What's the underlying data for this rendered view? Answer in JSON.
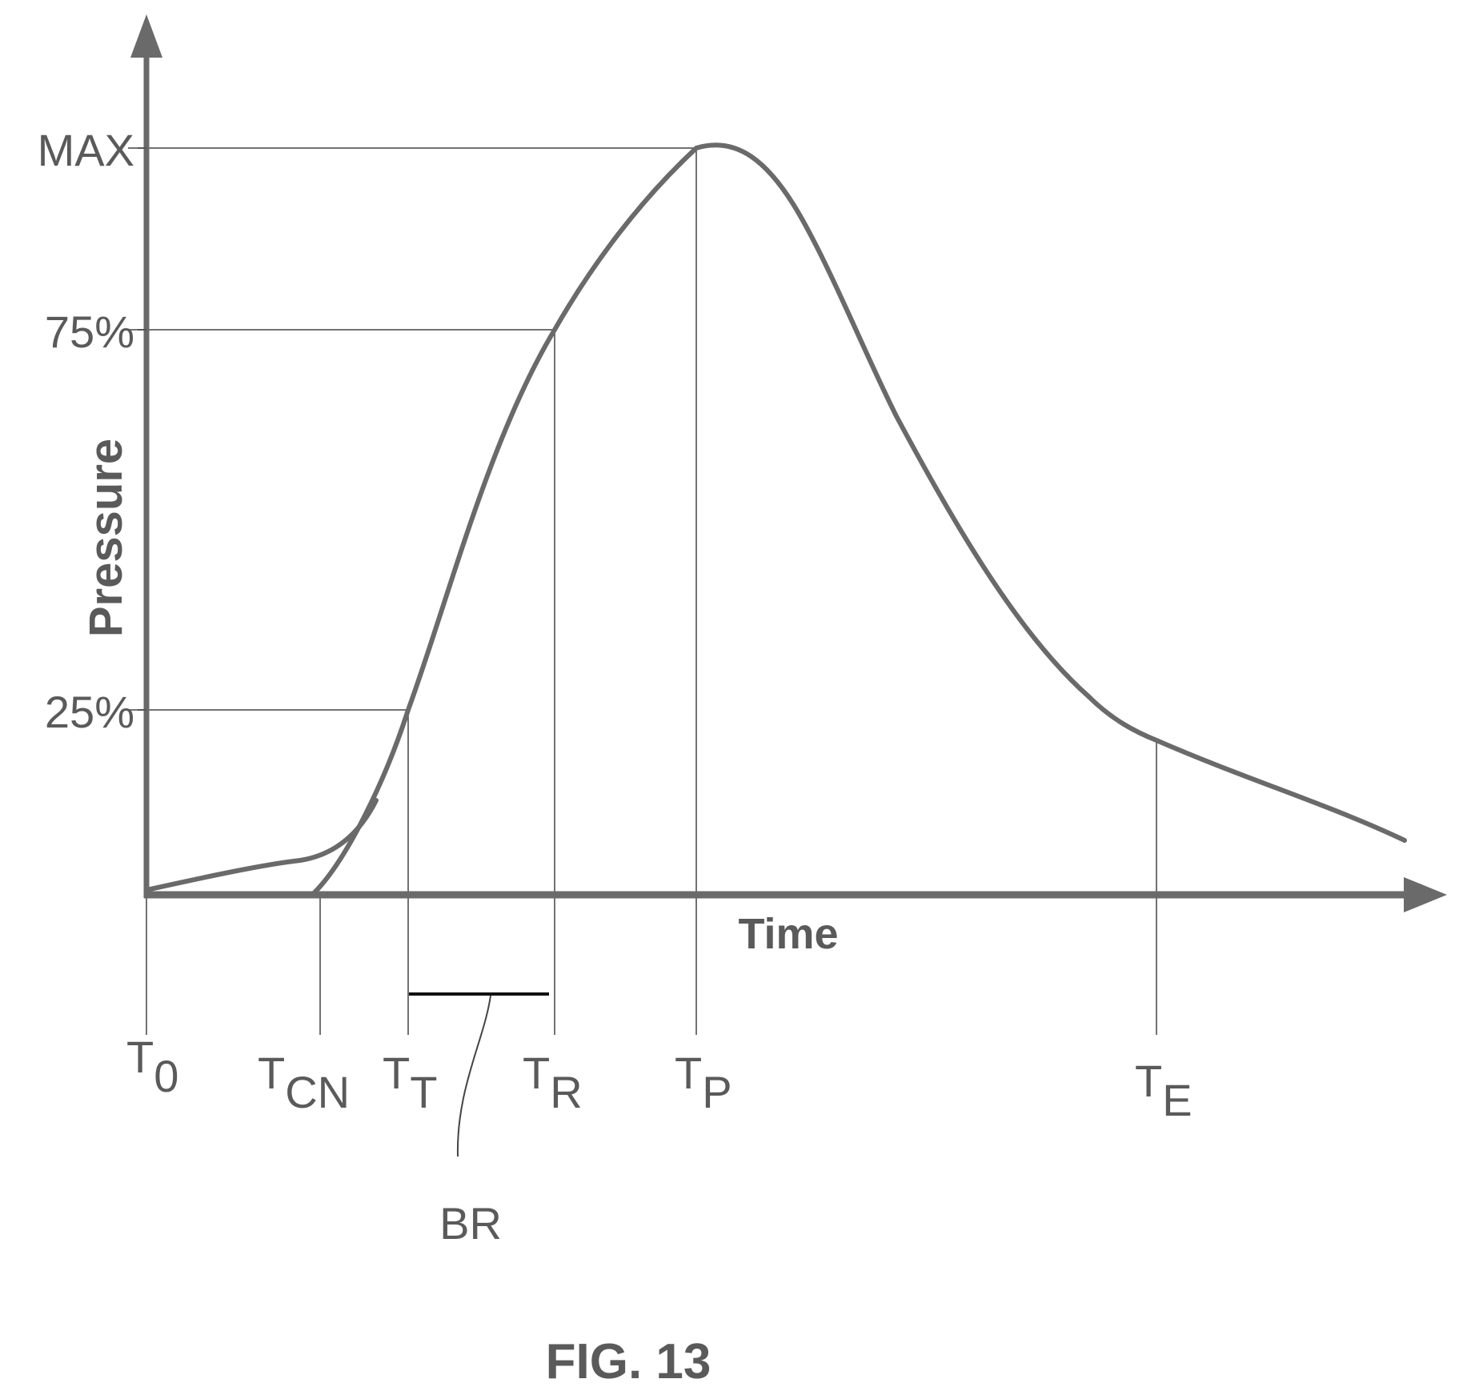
{
  "figure": {
    "caption": "FIG. 13",
    "axis_labels": {
      "y": "Pressure",
      "x": "Time"
    },
    "y_levels": [
      {
        "id": "max",
        "label": "MAX"
      },
      {
        "id": "p75",
        "label": "75%"
      },
      {
        "id": "p25",
        "label": "25%"
      }
    ],
    "time_markers": [
      {
        "id": "t0",
        "main": "T",
        "sub": "0"
      },
      {
        "id": "tcn",
        "main": "T",
        "sub": "CN"
      },
      {
        "id": "tt",
        "main": "T",
        "sub": "T"
      },
      {
        "id": "tr",
        "main": "T",
        "sub": "R"
      },
      {
        "id": "tp",
        "main": "T",
        "sub": "P"
      },
      {
        "id": "te",
        "main": "T",
        "sub": "E"
      }
    ],
    "bracket_label": "BR"
  }
}
